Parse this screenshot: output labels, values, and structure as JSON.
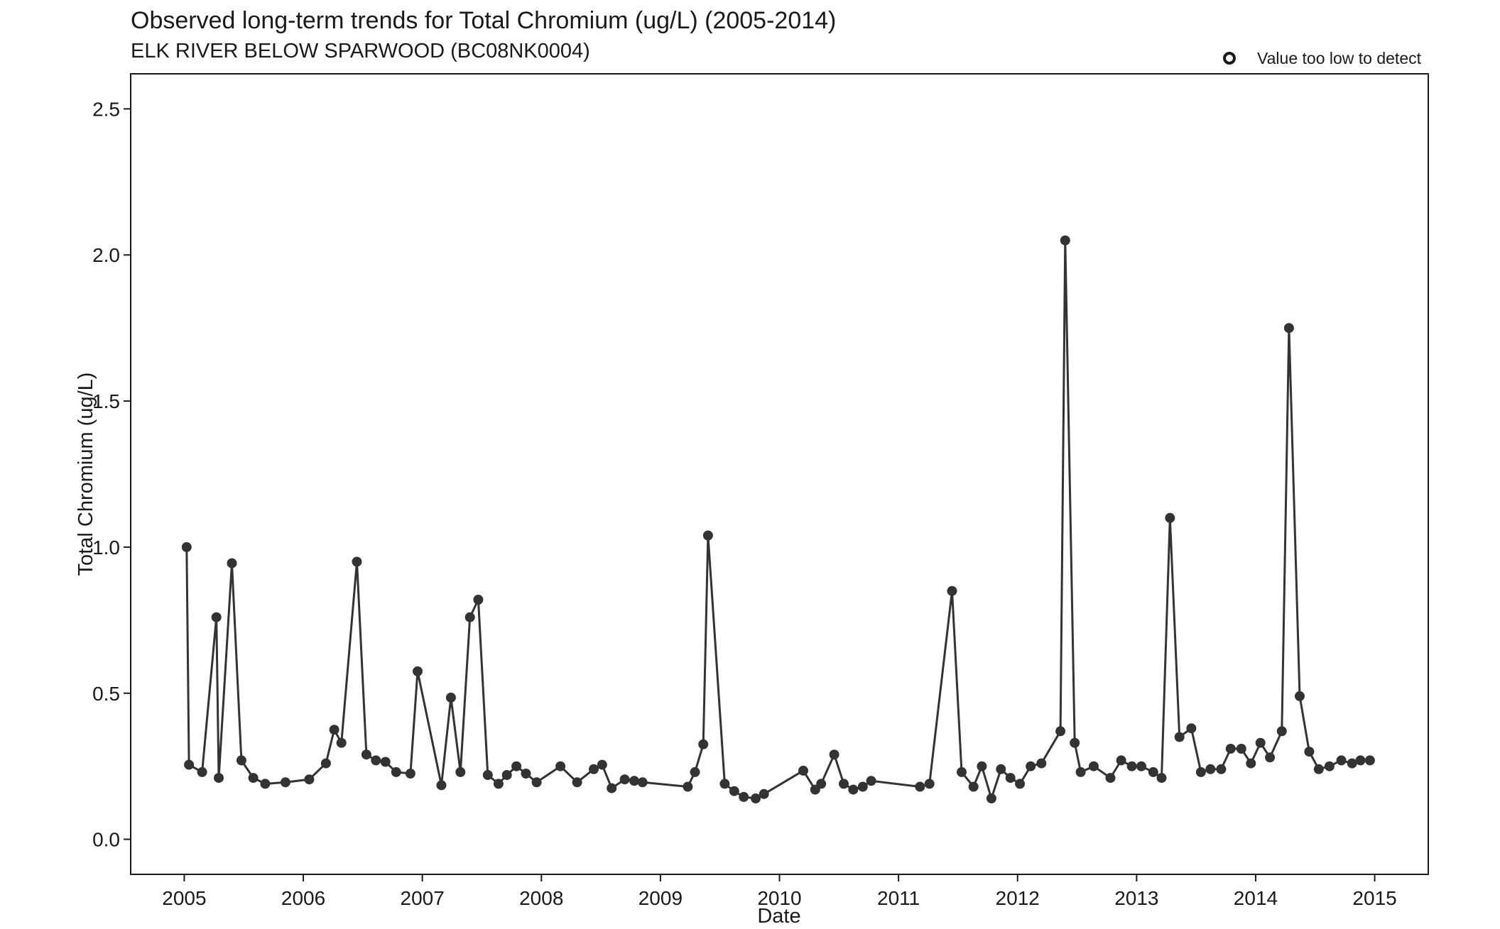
{
  "chart_data": {
    "type": "line",
    "title": "Observed long-term trends for Total Chromium (ug/L) (2005-2014)",
    "subtitle": "ELK RIVER BELOW SPARWOOD (BC08NK0004)",
    "xlabel": "Date",
    "ylabel": "Total Chromium (ug/L)",
    "xlim": [
      2004.55,
      2015.45
    ],
    "ylim": [
      -0.12,
      2.62
    ],
    "x_ticks": [
      2005,
      2006,
      2007,
      2008,
      2009,
      2010,
      2011,
      2012,
      2013,
      2014,
      2015
    ],
    "x_tick_labels": [
      "2005",
      "2006",
      "2007",
      "2008",
      "2009",
      "2010",
      "2011",
      "2012",
      "2013",
      "2014",
      "2015"
    ],
    "y_ticks": [
      0.0,
      0.5,
      1.0,
      1.5,
      2.0,
      2.5
    ],
    "y_tick_labels": [
      "0.0",
      "0.5",
      "1.0",
      "1.5",
      "2.0",
      "2.5"
    ],
    "grid": false,
    "legend": {
      "position": "top-right",
      "entries": [
        {
          "label": "Value too low to detect",
          "marker": "open-circle"
        }
      ]
    },
    "colors": {
      "series": "#333333",
      "axis": "#1a1a1a"
    },
    "series": [
      {
        "x": [
          2005.02,
          2005.04,
          2005.15,
          2005.27,
          2005.29,
          2005.4,
          2005.48,
          2005.58,
          2005.68,
          2005.85,
          2006.05,
          2006.19,
          2006.26,
          2006.32,
          2006.45,
          2006.53,
          2006.61,
          2006.69,
          2006.78,
          2006.9,
          2006.96,
          2007.16,
          2007.24,
          2007.32,
          2007.4,
          2007.47,
          2007.55,
          2007.64,
          2007.71,
          2007.79,
          2007.87,
          2007.96,
          2008.16,
          2008.3,
          2008.44,
          2008.51,
          2008.59,
          2008.7,
          2008.78,
          2008.85,
          2009.23,
          2009.29,
          2009.36,
          2009.4,
          2009.54,
          2009.62,
          2009.7,
          2009.8,
          2009.87,
          2010.2,
          2010.3,
          2010.35,
          2010.46,
          2010.54,
          2010.62,
          2010.7,
          2010.77,
          2011.18,
          2011.26,
          2011.45,
          2011.53,
          2011.63,
          2011.7,
          2011.78,
          2011.86,
          2011.94,
          2012.02,
          2012.11,
          2012.2,
          2012.36,
          2012.4,
          2012.48,
          2012.53,
          2012.64,
          2012.78,
          2012.87,
          2012.96,
          2013.04,
          2013.14,
          2013.21,
          2013.28,
          2013.36,
          2013.46,
          2013.54,
          2013.62,
          2013.71,
          2013.79,
          2013.88,
          2013.96,
          2014.04,
          2014.12,
          2014.22,
          2014.28,
          2014.37,
          2014.45,
          2014.53,
          2014.62,
          2014.72,
          2014.81,
          2014.88,
          2014.96
        ],
        "y": [
          1.0,
          0.255,
          0.23,
          0.76,
          0.21,
          0.945,
          0.27,
          0.21,
          0.19,
          0.195,
          0.205,
          0.26,
          0.375,
          0.33,
          0.95,
          0.29,
          0.27,
          0.265,
          0.23,
          0.225,
          0.575,
          0.185,
          0.485,
          0.23,
          0.76,
          0.82,
          0.22,
          0.19,
          0.22,
          0.25,
          0.225,
          0.195,
          0.25,
          0.195,
          0.24,
          0.255,
          0.175,
          0.205,
          0.2,
          0.195,
          0.18,
          0.23,
          0.325,
          1.04,
          0.19,
          0.165,
          0.145,
          0.14,
          0.155,
          0.235,
          0.17,
          0.19,
          0.29,
          0.19,
          0.17,
          0.18,
          0.2,
          0.18,
          0.19,
          0.85,
          0.23,
          0.18,
          0.25,
          0.14,
          0.24,
          0.21,
          0.19,
          0.25,
          0.26,
          0.37,
          2.05,
          0.33,
          0.23,
          0.25,
          0.21,
          0.27,
          0.25,
          0.25,
          0.23,
          0.21,
          1.1,
          0.35,
          0.38,
          0.23,
          0.24,
          0.24,
          0.31,
          0.31,
          0.26,
          0.33,
          0.28,
          0.37,
          1.75,
          0.49,
          0.3,
          0.24,
          0.25,
          0.27,
          0.26,
          0.27,
          0.27
        ]
      }
    ]
  }
}
